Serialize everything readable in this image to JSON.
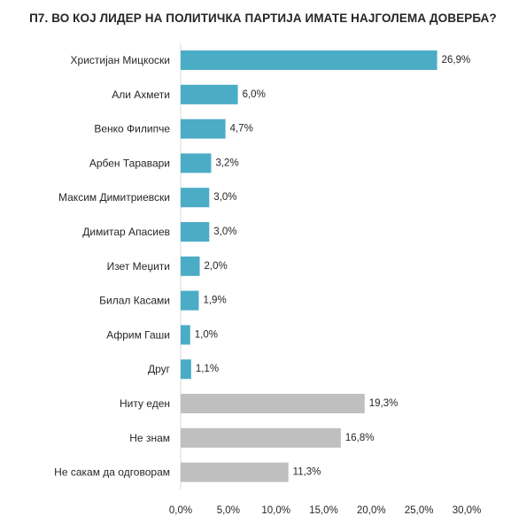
{
  "chart_data": {
    "type": "bar",
    "orientation": "horizontal",
    "title": "П7. ВО КОЈ ЛИДЕР НА ПОЛИТИЧКА ПАРТИЈА ИМАТЕ НАЈГОЛЕМА ДОВЕРБА?",
    "categories": [
      "Христијан Мицкоски",
      "Али Ахмети",
      "Венко Филипче",
      "Арбен Таравари",
      "Максим Димитриевски",
      "Димитар Апасиев",
      "Изет Меџити",
      "Билал Касами",
      "Африм Гаши",
      "Друг",
      "Ниту еден",
      "Не знам",
      "Не сакам да одговорам"
    ],
    "values": [
      26.9,
      6.0,
      4.7,
      3.2,
      3.0,
      3.0,
      2.0,
      1.9,
      1.0,
      1.1,
      19.3,
      16.8,
      11.3
    ],
    "value_labels": [
      "26,9%",
      "6,0%",
      "4,7%",
      "3,2%",
      "3,0%",
      "3,0%",
      "2,0%",
      "1,9%",
      "1,0%",
      "1,1%",
      "19,3%",
      "16,8%",
      "11,3%"
    ],
    "bar_colors": [
      "#4bacc6",
      "#4bacc6",
      "#4bacc6",
      "#4bacc6",
      "#4bacc6",
      "#4bacc6",
      "#4bacc6",
      "#4bacc6",
      "#4bacc6",
      "#4bacc6",
      "#bfbfbf",
      "#bfbfbf",
      "#bfbfbf"
    ],
    "xlim": [
      0,
      30
    ],
    "xticks": [
      0,
      5,
      10,
      15,
      20,
      25,
      30
    ],
    "xtick_labels": [
      "0,0%",
      "5,0%",
      "10,0%",
      "15,0%",
      "20,0%",
      "25,0%",
      "30,0%"
    ],
    "grid": false,
    "legend": "none"
  }
}
